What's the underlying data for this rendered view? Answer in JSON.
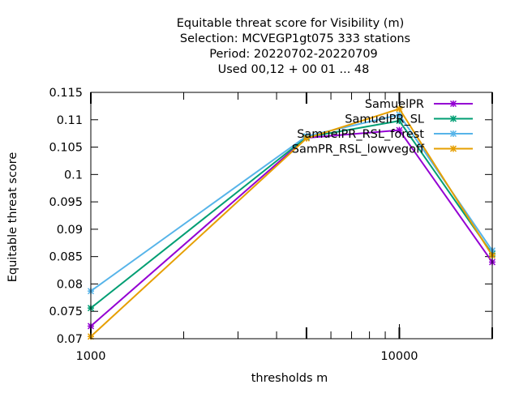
{
  "chart_data": {
    "type": "line",
    "title_lines": [
      "Equitable threat score  for Visibility (m)",
      "Selection: MCVEGP1gt075    333 stations",
      "Period: 20220702-20220709",
      "Used  00,12  + 00 01 ... 48"
    ],
    "xlabel": "thresholds m",
    "ylabel": "Equitable threat score",
    "x_scale": "log",
    "xlim": [
      1000,
      20000
    ],
    "ylim": [
      0.07,
      0.115
    ],
    "x_ticks": [
      {
        "value": 1000,
        "label": "1000"
      },
      {
        "value": 10000,
        "label": "10000"
      }
    ],
    "y_ticks": [
      {
        "value": 0.07,
        "label": "0.07"
      },
      {
        "value": 0.075,
        "label": "0.075"
      },
      {
        "value": 0.08,
        "label": "0.08"
      },
      {
        "value": 0.085,
        "label": "0.085"
      },
      {
        "value": 0.09,
        "label": "0.09"
      },
      {
        "value": 0.095,
        "label": "0.095"
      },
      {
        "value": 0.1,
        "label": "0.1"
      },
      {
        "value": 0.105,
        "label": "0.105"
      },
      {
        "value": 0.11,
        "label": "0.11"
      },
      {
        "value": 0.115,
        "label": "0.115"
      }
    ],
    "legend_position": "top-right",
    "x": [
      1000,
      5000,
      10000,
      20000
    ],
    "series": [
      {
        "name": "SamuelPR",
        "color": "#9400d3",
        "values": [
          0.0723,
          0.1067,
          0.1081,
          0.084
        ]
      },
      {
        "name": "SamuelPR_SL",
        "color": "#009e73",
        "values": [
          0.0756,
          0.1068,
          0.1098,
          0.0855
        ]
      },
      {
        "name": "SamuelPR_RSL_forest",
        "color": "#56b4e9",
        "values": [
          0.0787,
          0.107,
          0.1109,
          0.0861
        ]
      },
      {
        "name": "SamPR_RSL_lowvegoff",
        "color": "#e69f00",
        "values": [
          0.0704,
          0.1066,
          0.112,
          0.0852
        ]
      }
    ]
  }
}
